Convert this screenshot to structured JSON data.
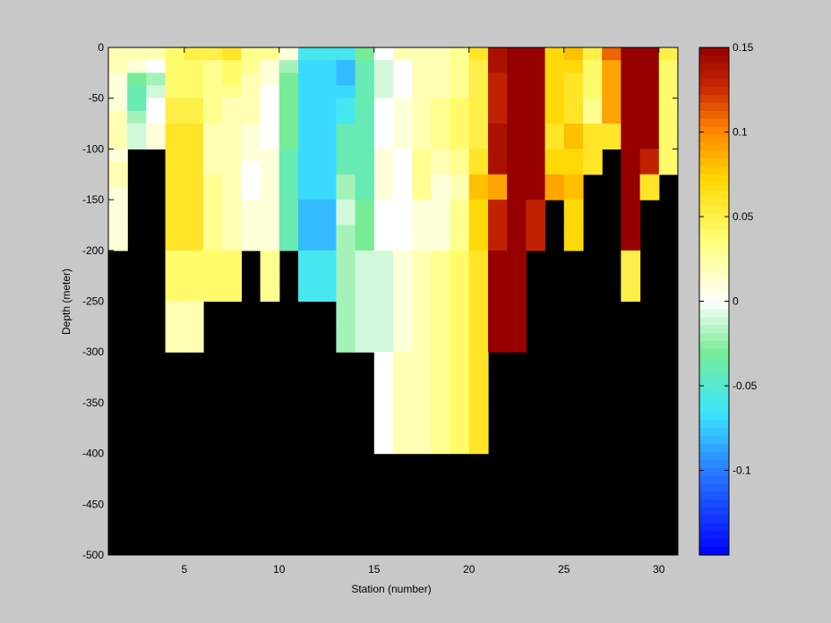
{
  "chart_data": {
    "type": "heatmap",
    "xlabel": "Station (number)",
    "ylabel": "Depth (meter)",
    "xlim": [
      1,
      31
    ],
    "ylim": [
      -500,
      0
    ],
    "xticks": [
      5,
      10,
      15,
      20,
      25,
      30
    ],
    "yticks": [
      0,
      -50,
      -100,
      -150,
      -200,
      -250,
      -300,
      -350,
      -400,
      -450,
      -500
    ],
    "colorbar": {
      "range": [
        -0.15,
        0.15
      ],
      "ticks": [
        0.15,
        0.1,
        0.05,
        0,
        -0.05,
        -0.1
      ],
      "tick_labels": [
        "0.15",
        "0.1",
        "0.05",
        "0",
        "-0.05",
        "-0.1"
      ],
      "colormap": "jet-white-centered"
    },
    "background_color": "#000000",
    "grid": false,
    "stations": [
      1,
      2,
      3,
      4,
      5,
      6,
      7,
      8,
      9,
      10,
      11,
      12,
      13,
      14,
      15,
      16,
      17,
      18,
      19,
      20,
      21,
      22,
      23,
      24,
      25,
      26,
      27,
      28,
      29,
      30,
      31
    ],
    "depth_bins": [
      0,
      -12.5,
      -25,
      -37.5,
      -50,
      -62.5,
      -75,
      -87.5,
      -100,
      -112.5,
      -125,
      -137.5,
      -150,
      -162.5,
      -175,
      -187.5,
      -200,
      -212.5,
      -225,
      -237.5,
      -250,
      -262.5,
      -275,
      -287.5,
      -300,
      -312.5,
      -325,
      -337.5,
      -350,
      -362.5,
      -375,
      -387.5,
      -400
    ],
    "columns": [
      {
        "station": 1,
        "values": [
          0.02,
          0.02,
          0.01,
          0.01,
          0.01,
          0.02,
          0.02,
          0.02,
          0.01,
          0.02,
          0.02,
          0.01,
          0.01,
          0.01,
          0.01,
          0.01
        ]
      },
      {
        "station": 2,
        "values": [
          0.02,
          0.01,
          -0.03,
          -0.04,
          -0.04,
          -0.02,
          -0.01,
          -0.01
        ]
      },
      {
        "station": 3,
        "values": [
          0.02,
          0.0,
          -0.02,
          -0.01,
          0.0,
          0.0,
          0.01,
          0.01
        ]
      },
      {
        "station": 4,
        "values": [
          0.04,
          0.04,
          0.04,
          0.04,
          0.05,
          0.05,
          0.06,
          0.06,
          0.06,
          0.06,
          0.06,
          0.06,
          0.06,
          0.06,
          0.06,
          0.06,
          0.04,
          0.04,
          0.04,
          0.04,
          0.02,
          0.02,
          0.02,
          0.02
        ]
      },
      {
        "station": 5,
        "values": [
          0.05,
          0.04,
          0.04,
          0.04,
          0.05,
          0.05,
          0.06,
          0.06,
          0.06,
          0.06,
          0.06,
          0.06,
          0.06,
          0.06,
          0.06,
          0.06,
          0.04,
          0.04,
          0.04,
          0.04,
          0.02,
          0.02,
          0.02,
          0.02
        ]
      },
      {
        "station": 6,
        "values": [
          0.05,
          0.03,
          0.03,
          0.03,
          0.03,
          0.03,
          0.02,
          0.02,
          0.02,
          0.02,
          0.03,
          0.03,
          0.03,
          0.03,
          0.03,
          0.03,
          0.04,
          0.04,
          0.04,
          0.04
        ]
      },
      {
        "station": 7,
        "values": [
          0.06,
          0.04,
          0.04,
          0.03,
          0.02,
          0.02,
          0.02,
          0.02,
          0.02,
          0.02,
          0.02,
          0.02,
          0.02,
          0.02,
          0.02,
          0.02,
          0.04,
          0.04,
          0.04,
          0.04
        ]
      },
      {
        "station": 8,
        "values": [
          0.03,
          0.03,
          0.02,
          0.02,
          0.02,
          0.02,
          0.01,
          0.01,
          0.01,
          0.0,
          0.0,
          0.0,
          0.01,
          0.01,
          0.01,
          0.01
        ]
      },
      {
        "station": 9,
        "values": [
          0.03,
          0.01,
          0.01,
          0.0,
          0.0,
          0.0,
          0.0,
          0.0,
          0.01,
          0.01,
          0.01,
          0.01,
          0.01,
          0.01,
          0.01,
          0.01,
          0.03,
          0.03,
          0.03,
          0.03
        ]
      },
      {
        "station": 10,
        "values": [
          0.01,
          -0.02,
          -0.03,
          -0.03,
          -0.03,
          -0.03,
          -0.03,
          -0.03,
          -0.04,
          -0.04,
          -0.04,
          -0.04,
          -0.04,
          -0.04,
          -0.04,
          -0.04
        ]
      },
      {
        "station": 11,
        "values": [
          -0.06,
          -0.07,
          -0.07,
          -0.07,
          -0.07,
          -0.07,
          -0.07,
          -0.07,
          -0.07,
          -0.07,
          -0.07,
          -0.07,
          -0.08,
          -0.08,
          -0.08,
          -0.08,
          -0.06,
          -0.06,
          -0.06,
          -0.06
        ]
      },
      {
        "station": 12,
        "values": [
          -0.06,
          -0.07,
          -0.07,
          -0.07,
          -0.07,
          -0.07,
          -0.07,
          -0.07,
          -0.07,
          -0.07,
          -0.07,
          -0.07,
          -0.08,
          -0.08,
          -0.08,
          -0.08,
          -0.06,
          -0.06,
          -0.06,
          -0.06
        ]
      },
      {
        "station": 13,
        "values": [
          -0.06,
          -0.08,
          -0.08,
          -0.07,
          -0.06,
          -0.06,
          -0.04,
          -0.04,
          -0.04,
          -0.04,
          -0.02,
          -0.02,
          -0.01,
          -0.01,
          -0.02,
          -0.02,
          -0.02,
          -0.02,
          -0.02,
          -0.02,
          -0.02,
          -0.02,
          -0.02,
          -0.02
        ]
      },
      {
        "station": 14,
        "values": [
          -0.03,
          -0.04,
          -0.04,
          -0.04,
          -0.04,
          -0.04,
          -0.04,
          -0.04,
          -0.04,
          -0.04,
          -0.04,
          -0.04,
          -0.03,
          -0.03,
          -0.03,
          -0.03,
          -0.01,
          -0.01,
          -0.01,
          -0.01,
          -0.01,
          -0.01,
          -0.01,
          -0.01
        ]
      },
      {
        "station": 15,
        "values": [
          0.0,
          -0.01,
          -0.01,
          -0.01,
          0.0,
          0.0,
          0.0,
          0.0,
          0.01,
          0.01,
          0.01,
          0.01,
          0.0,
          0.0,
          0.0,
          0.0,
          -0.01,
          -0.01,
          -0.01,
          -0.01,
          -0.01,
          -0.01,
          -0.01,
          -0.01,
          0.0,
          0.0,
          0.0,
          0.0,
          0.0,
          0.0,
          0.0,
          0.0
        ]
      },
      {
        "station": 16,
        "values": [
          0.02,
          0.0,
          0.0,
          0.0,
          0.01,
          0.01,
          0.01,
          0.01,
          0.0,
          0.0,
          0.0,
          0.0,
          0.0,
          0.0,
          0.0,
          0.0,
          0.01,
          0.01,
          0.01,
          0.01,
          0.01,
          0.01,
          0.01,
          0.01,
          0.02,
          0.02,
          0.02,
          0.02,
          0.02,
          0.02,
          0.02,
          0.02
        ]
      },
      {
        "station": 17,
        "values": [
          0.02,
          0.02,
          0.02,
          0.02,
          0.02,
          0.02,
          0.02,
          0.02,
          0.03,
          0.03,
          0.03,
          0.03,
          0.01,
          0.01,
          0.01,
          0.01,
          0.02,
          0.02,
          0.02,
          0.02,
          0.02,
          0.02,
          0.02,
          0.02,
          0.02,
          0.02,
          0.02,
          0.02,
          0.02,
          0.02,
          0.02,
          0.02
        ]
      },
      {
        "station": 18,
        "values": [
          0.02,
          0.02,
          0.02,
          0.02,
          0.03,
          0.03,
          0.03,
          0.03,
          0.02,
          0.02,
          0.01,
          0.01,
          0.01,
          0.01,
          0.01,
          0.01,
          0.03,
          0.03,
          0.03,
          0.03,
          0.03,
          0.03,
          0.03,
          0.03,
          0.03,
          0.03,
          0.03,
          0.03,
          0.03,
          0.03,
          0.03,
          0.03
        ]
      },
      {
        "station": 19,
        "values": [
          0.03,
          0.03,
          0.03,
          0.03,
          0.04,
          0.04,
          0.04,
          0.04,
          0.03,
          0.03,
          0.02,
          0.02,
          0.03,
          0.03,
          0.03,
          0.03,
          0.04,
          0.04,
          0.04,
          0.04,
          0.04,
          0.04,
          0.04,
          0.04,
          0.04,
          0.04,
          0.04,
          0.04,
          0.04,
          0.04,
          0.04,
          0.04
        ]
      },
      {
        "station": 20,
        "values": [
          0.06,
          0.05,
          0.05,
          0.05,
          0.05,
          0.05,
          0.05,
          0.05,
          0.06,
          0.06,
          0.08,
          0.08,
          0.07,
          0.07,
          0.07,
          0.07,
          0.06,
          0.06,
          0.06,
          0.06,
          0.06,
          0.06,
          0.06,
          0.06,
          0.06,
          0.06,
          0.06,
          0.06,
          0.06,
          0.06,
          0.06,
          0.06
        ]
      },
      {
        "station": 21,
        "values": [
          0.14,
          0.14,
          0.13,
          0.13,
          0.13,
          0.13,
          0.14,
          0.14,
          0.14,
          0.14,
          0.09,
          0.09,
          0.13,
          0.13,
          0.13,
          0.13,
          0.15,
          0.15,
          0.15,
          0.15,
          0.15,
          0.15,
          0.15,
          0.15
        ]
      },
      {
        "station": 22,
        "values": [
          0.15,
          0.15,
          0.15,
          0.15,
          0.15,
          0.15,
          0.15,
          0.15,
          0.15,
          0.15,
          0.15,
          0.15,
          0.15,
          0.15,
          0.15,
          0.15,
          0.15,
          0.15,
          0.15,
          0.15,
          0.15,
          0.15,
          0.15,
          0.15
        ]
      },
      {
        "station": 23,
        "values": [
          0.15,
          0.15,
          0.15,
          0.15,
          0.15,
          0.15,
          0.15,
          0.15,
          0.15,
          0.15,
          0.15,
          0.15,
          0.13,
          0.13,
          0.13,
          0.13
        ]
      },
      {
        "station": 24,
        "values": [
          0.07,
          0.07,
          0.07,
          0.07,
          0.07,
          0.07,
          0.06,
          0.06,
          0.07,
          0.07,
          0.09,
          0.09
        ]
      },
      {
        "station": 25,
        "values": [
          0.08,
          0.07,
          0.06,
          0.06,
          0.06,
          0.06,
          0.08,
          0.08,
          0.07,
          0.07,
          0.08,
          0.08,
          0.07,
          0.07,
          0.07,
          0.07
        ]
      },
      {
        "station": 26,
        "values": [
          0.05,
          0.04,
          0.04,
          0.04,
          0.03,
          0.03,
          0.06,
          0.06,
          0.06,
          0.06
        ]
      },
      {
        "station": 27,
        "values": [
          0.11,
          0.09,
          0.09,
          0.09,
          0.09,
          0.09,
          0.06,
          0.06
        ]
      },
      {
        "station": 28,
        "values": [
          0.15,
          0.15,
          0.15,
          0.15,
          0.15,
          0.15,
          0.15,
          0.15,
          0.15,
          0.15,
          0.15,
          0.15,
          0.15,
          0.15,
          0.15,
          0.15,
          0.05,
          0.05,
          0.05,
          0.05
        ]
      },
      {
        "station": 29,
        "values": [
          0.15,
          0.15,
          0.15,
          0.15,
          0.15,
          0.15,
          0.15,
          0.15,
          0.13,
          0.13,
          0.06,
          0.06
        ]
      },
      {
        "station": 30,
        "values": [
          0.05,
          0.04,
          0.04,
          0.04,
          0.04,
          0.04,
          0.04,
          0.04,
          0.04,
          0.04
        ]
      }
    ]
  }
}
